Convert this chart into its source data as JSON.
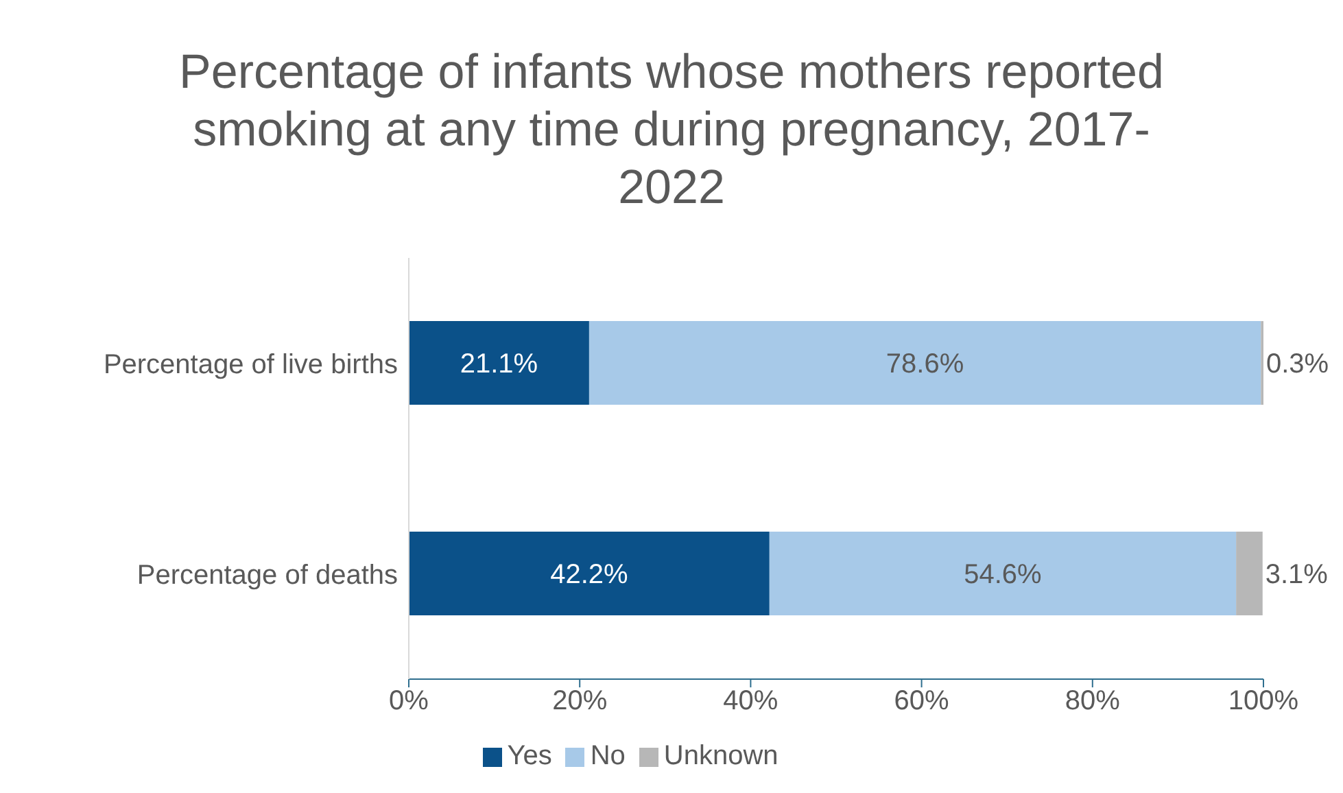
{
  "chart_data": {
    "type": "bar",
    "orientation": "horizontal",
    "stacked": true,
    "title": "Percentage of infants whose mothers reported smoking at any time during pregnancy, 2017-2022",
    "categories": [
      "Percentage of live births",
      "Percentage of deaths"
    ],
    "series": [
      {
        "name": "Yes",
        "color": "#0b5189",
        "values": [
          21.1,
          42.2
        ],
        "value_labels": [
          "21.1%",
          "42.2%"
        ]
      },
      {
        "name": "No",
        "color": "#a7c9e8",
        "values": [
          78.6,
          54.6
        ],
        "value_labels": [
          "78.6%",
          "54.6%"
        ]
      },
      {
        "name": "Unknown",
        "color": "#b7b7b7",
        "values": [
          0.3,
          3.1
        ],
        "value_labels": [
          "0.3%",
          "3.1%"
        ]
      }
    ],
    "xlim": [
      0,
      100
    ],
    "xticks": [
      {
        "value": 0,
        "label": "0%"
      },
      {
        "value": 20,
        "label": "20%"
      },
      {
        "value": 40,
        "label": "40%"
      },
      {
        "value": 60,
        "label": "60%"
      },
      {
        "value": 80,
        "label": "80%"
      },
      {
        "value": 100,
        "label": "100%"
      }
    ],
    "grid": false,
    "legend": "bottom"
  }
}
